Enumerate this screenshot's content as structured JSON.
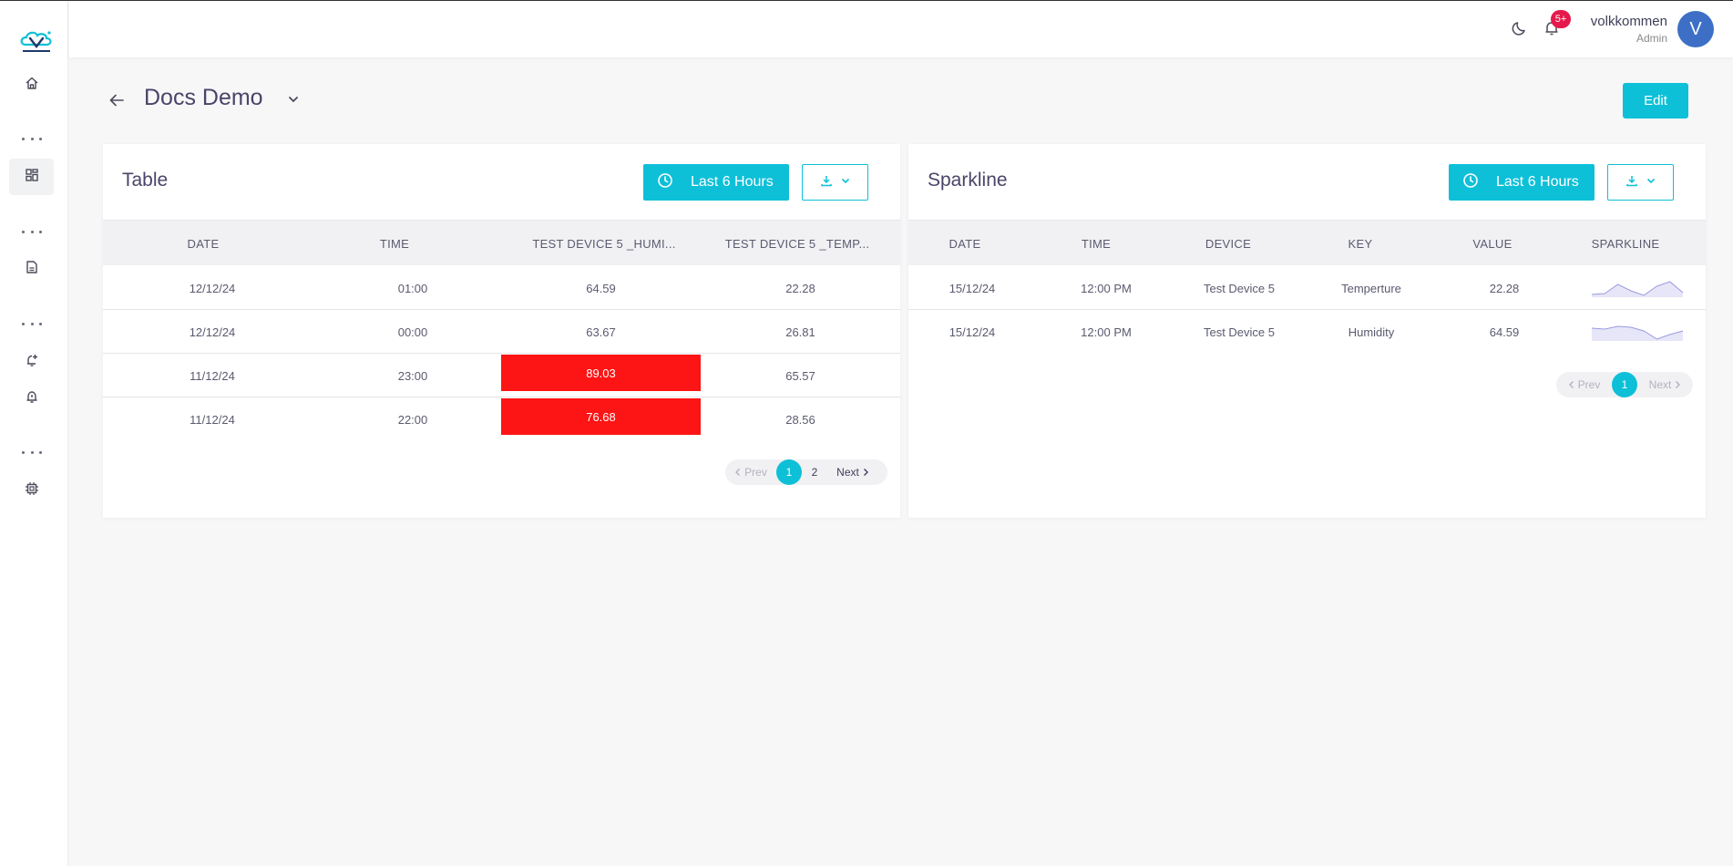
{
  "header": {
    "notification_count": "5+",
    "user_name": "volkkommen",
    "user_role": "Admin",
    "avatar_initial": "V"
  },
  "page": {
    "title": "Docs Demo",
    "edit_label": "Edit"
  },
  "colors": {
    "accent": "#0dc0d8",
    "alert": "#fd1414",
    "avatar": "#3d6fc6",
    "badge": "#e5194b"
  },
  "sidebar": {
    "icons": [
      "home-icon",
      "dashboard-icon",
      "report-icon",
      "add-alarm-icon",
      "alarm-icon",
      "device-chip-icon"
    ]
  },
  "table_card": {
    "title": "Table",
    "range_label": "Last 6 Hours",
    "columns": [
      "DATE",
      "TIME",
      "TEST DEVICE 5 _HUMI...",
      "TEST DEVICE 5 _TEMP..."
    ],
    "rows": [
      [
        "12/12/24",
        "01:00",
        "64.59",
        "22.28"
      ],
      [
        "12/12/24",
        "00:00",
        "63.67",
        "26.81"
      ],
      [
        "11/12/24",
        "23:00",
        "89.03",
        "65.57"
      ],
      [
        "11/12/24",
        "22:00",
        "76.68",
        "28.56"
      ]
    ],
    "highlighted_cells": [
      [
        2,
        2
      ],
      [
        3,
        2
      ]
    ],
    "pagination": {
      "prev": "Prev",
      "pages": [
        "1",
        "2"
      ],
      "current": "1",
      "next": "Next"
    }
  },
  "sparkline_card": {
    "title": "Sparkline",
    "range_label": "Last 6 Hours",
    "columns": [
      "DATE",
      "TIME",
      "DEVICE",
      "KEY",
      "VALUE",
      "SPARKLINE"
    ],
    "rows": [
      {
        "date": "15/12/24",
        "time": "12:00 PM",
        "device": "Test Device 5",
        "key": "Temperture",
        "value": "22.28",
        "spark": [
          0.15,
          0.2,
          0.7,
          0.35,
          0.1,
          0.6,
          0.85,
          0.25
        ]
      },
      {
        "date": "15/12/24",
        "time": "12:00 PM",
        "device": "Test Device 5",
        "key": "Humidity",
        "value": "64.59",
        "spark": [
          0.7,
          0.65,
          0.8,
          0.75,
          0.55,
          0.1,
          0.35,
          0.55
        ]
      }
    ],
    "pagination": {
      "prev": "Prev",
      "pages": [
        "1"
      ],
      "current": "1",
      "next": "Next"
    }
  }
}
